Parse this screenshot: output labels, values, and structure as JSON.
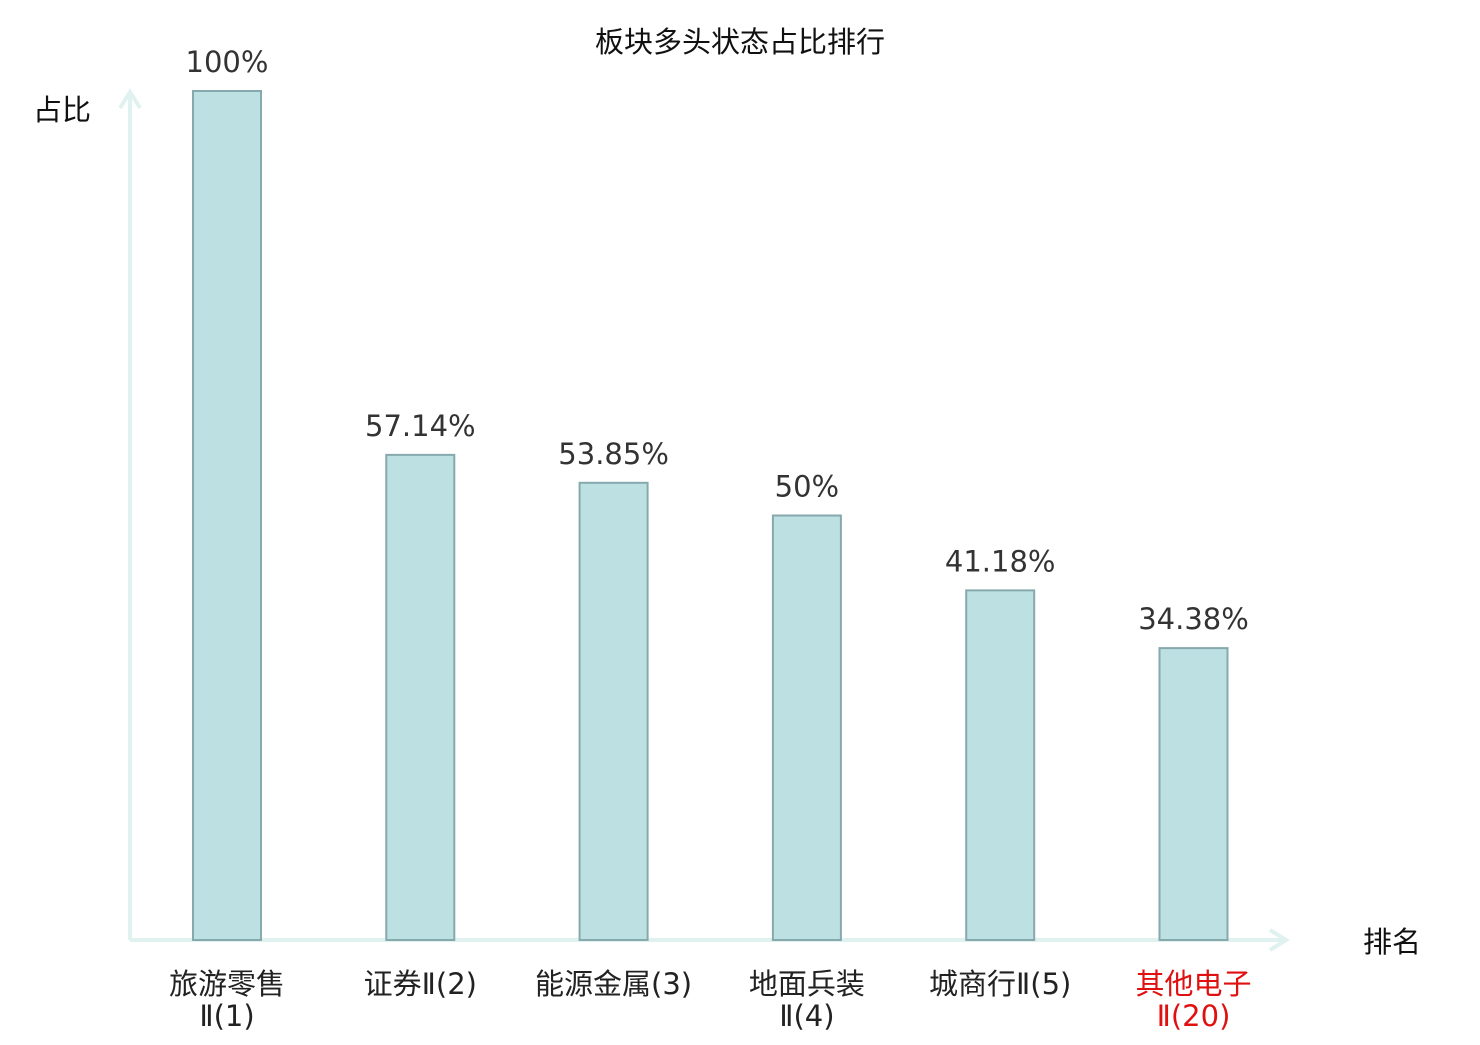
{
  "chart_data": {
    "type": "bar",
    "title": "板块多头状态占比排行",
    "ylabel": "占比",
    "xlabel": "排名",
    "ylim": [
      0,
      100
    ],
    "grid": false,
    "categories": [
      {
        "line1": "旅游零售",
        "line2": "Ⅱ(1)",
        "highlight": false
      },
      {
        "line1": "证券Ⅱ(2)",
        "line2": "",
        "highlight": false
      },
      {
        "line1": "能源金属(3)",
        "line2": "",
        "highlight": false
      },
      {
        "line1": "地面兵装",
        "line2": "Ⅱ(4)",
        "highlight": false
      },
      {
        "line1": "城商行Ⅱ(5)",
        "line2": "",
        "highlight": false
      },
      {
        "line1": "其他电子",
        "line2": "Ⅱ(20)",
        "highlight": true
      }
    ],
    "values": [
      100,
      57.14,
      53.85,
      50,
      41.18,
      34.38
    ],
    "data_labels": [
      "100%",
      "57.14%",
      "53.85%",
      "50%",
      "41.18%",
      "34.38%"
    ],
    "colors": {
      "bar_fill": "#bde0e3",
      "bar_stroke": "#86a9ad",
      "axis": "#dff2f0",
      "highlight_text": "#e01010"
    }
  }
}
